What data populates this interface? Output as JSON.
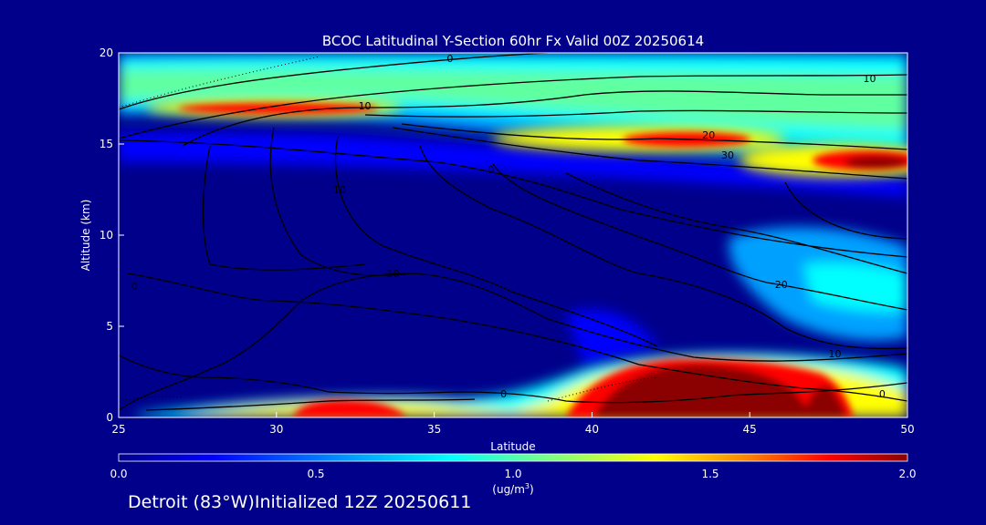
{
  "chart_data": {
    "type": "heatmap",
    "title": "BCOC Latitudinal Y-Section 60hr  Fx Valid 00Z 20250614",
    "xlabel": "Latitude",
    "ylabel": "Altitude (km)",
    "xlim": [
      25,
      50
    ],
    "ylim": [
      0,
      20
    ],
    "x_ticks": [
      "25",
      "30",
      "35",
      "40",
      "45",
      "50"
    ],
    "y_ticks": [
      "0",
      "5",
      "10",
      "15",
      "20"
    ],
    "colorbar": {
      "min": 0.0,
      "max": 2.0,
      "ticks": [
        "0.0",
        "0.5",
        "1.0",
        "1.5",
        "2.0"
      ],
      "unit_main": "(ug/m",
      "unit_sup": "3",
      "unit_close": ")",
      "colors": [
        "#00008b",
        "#0000ff",
        "#00a0ff",
        "#00ffff",
        "#80ff80",
        "#ffff00",
        "#ff8000",
        "#ff0000",
        "#8b0000"
      ]
    },
    "features": [
      {
        "kind": "band",
        "description": "stratospheric layer",
        "lat": [
          25,
          50
        ],
        "alt_low": [
          16.2,
          13.5
        ],
        "alt_high": [
          19.8,
          18.8
        ],
        "value": 0.9
      },
      {
        "kind": "blob",
        "lat": 32.5,
        "alt": 17.0,
        "value": 1.9
      },
      {
        "kind": "blob",
        "lat": 43.5,
        "alt": 15.2,
        "value": 1.9
      },
      {
        "kind": "blob",
        "lat": 49.0,
        "alt": 14.2,
        "value": 2.0
      },
      {
        "kind": "blob",
        "lat": 44.0,
        "alt": 2.5,
        "value": 2.0
      },
      {
        "kind": "blob",
        "lat": 32.0,
        "alt": 0.6,
        "value": 1.9
      }
    ],
    "contour_labels": [
      {
        "text": "0",
        "lat": 35.5,
        "alt": 20.0
      },
      {
        "text": "10",
        "lat": 32.8,
        "alt": 17.1
      },
      {
        "text": "10",
        "lat": 48.8,
        "alt": 18.6
      },
      {
        "text": "20",
        "lat": 43.7,
        "alt": 15.5
      },
      {
        "text": "30",
        "lat": 44.3,
        "alt": 14.4
      },
      {
        "text": "0",
        "lat": 36.8,
        "alt": 13.6
      },
      {
        "text": "10",
        "lat": 32.0,
        "alt": 12.5
      },
      {
        "text": "10",
        "lat": 33.7,
        "alt": 7.9
      },
      {
        "text": "0",
        "lat": 25.5,
        "alt": 7.2
      },
      {
        "text": "20",
        "lat": 46.0,
        "alt": 7.3
      },
      {
        "text": "10",
        "lat": 47.7,
        "alt": 3.5
      },
      {
        "text": "0",
        "lat": 49.2,
        "alt": 1.3
      },
      {
        "text": "0",
        "lat": 37.2,
        "alt": 1.3
      }
    ]
  },
  "footer": "Detroit (83°W)Initialized 12Z 20250611"
}
